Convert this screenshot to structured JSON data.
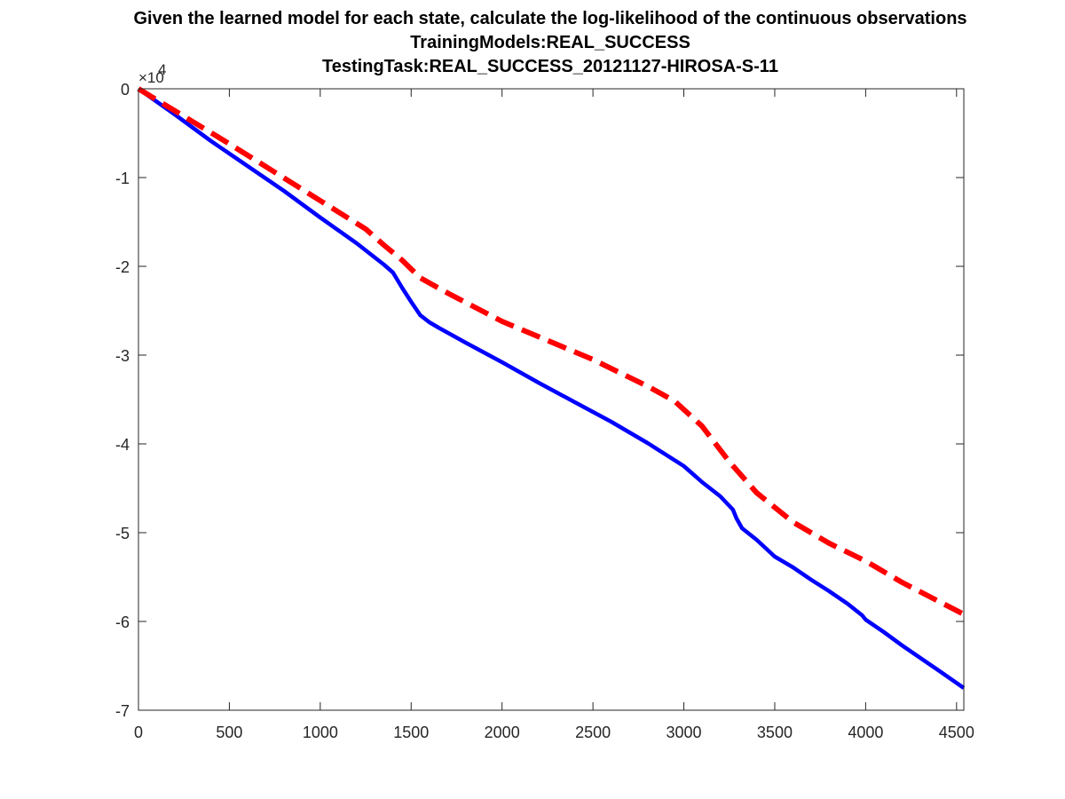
{
  "titles": [
    "Given the learned model for each state, calculate the log-likelihood of the continuous observations",
    "TrainingModels:REAL_SUCCESS",
    "TestingTask:REAL_SUCCESS_20121127-HIROSA-S-11"
  ],
  "chart_data": {
    "type": "line",
    "title": "Given the learned model for each state, calculate the log-likelihood of the continuous observations\nTrainingModels:REAL_SUCCESS\nTestingTask:REAL_SUCCESS_20121127-HIROSA-S-11",
    "xlabel": "",
    "ylabel": "",
    "xlim": [
      0,
      4540
    ],
    "ylim": [
      -7,
      0
    ],
    "y_multiplier": "×10",
    "y_multiplier_exponent": "4",
    "xticks": [
      0,
      500,
      1000,
      1500,
      2000,
      2500,
      3000,
      3500,
      4000,
      4500
    ],
    "xtick_labels": [
      "0",
      "500",
      "1000",
      "1500",
      "2000",
      "2500",
      "3000",
      "3500",
      "4000",
      "4500"
    ],
    "yticks": [
      0,
      -1,
      -2,
      -3,
      -4,
      -5,
      -6,
      -7
    ],
    "ytick_labels": [
      "0",
      "-1",
      "-2",
      "-3",
      "-4",
      "-5",
      "-6",
      "-7"
    ],
    "grid": false,
    "legend": "none",
    "series": [
      {
        "color": "#0000ff",
        "style": "solid",
        "x": [
          0,
          200,
          400,
          600,
          800,
          1000,
          1200,
          1350,
          1400,
          1450,
          1500,
          1550,
          1600,
          1650,
          1800,
          2000,
          2200,
          2400,
          2600,
          2800,
          3000,
          3050,
          3100,
          3200,
          3270,
          3290,
          3320,
          3400,
          3500,
          3600,
          3700,
          3800,
          3900,
          3980,
          4000,
          4100,
          4200,
          4300,
          4400,
          4540
        ],
        "y": [
          0,
          -0.29,
          -0.59,
          -0.87,
          -1.15,
          -1.45,
          -1.74,
          -1.98,
          -2.07,
          -2.24,
          -2.4,
          -2.55,
          -2.63,
          -2.69,
          -2.86,
          -3.08,
          -3.31,
          -3.53,
          -3.75,
          -3.99,
          -4.25,
          -4.34,
          -4.43,
          -4.59,
          -4.74,
          -4.84,
          -4.95,
          -5.08,
          -5.27,
          -5.39,
          -5.53,
          -5.66,
          -5.8,
          -5.93,
          -5.98,
          -6.12,
          -6.27,
          -6.41,
          -6.55,
          -6.75
        ]
      },
      {
        "color": "#ff0000",
        "style": "dashed",
        "x": [
          0,
          250,
          500,
          750,
          1000,
          1250,
          1350,
          1450,
          1550,
          1700,
          2000,
          2500,
          2800,
          2950,
          3100,
          3250,
          3400,
          3600,
          3800,
          4000,
          4200,
          4540
        ],
        "y": [
          0,
          -0.31,
          -0.62,
          -0.94,
          -1.26,
          -1.58,
          -1.76,
          -1.93,
          -2.13,
          -2.3,
          -2.62,
          -3.05,
          -3.35,
          -3.52,
          -3.8,
          -4.2,
          -4.55,
          -4.88,
          -5.12,
          -5.32,
          -5.56,
          -5.92
        ]
      }
    ]
  }
}
